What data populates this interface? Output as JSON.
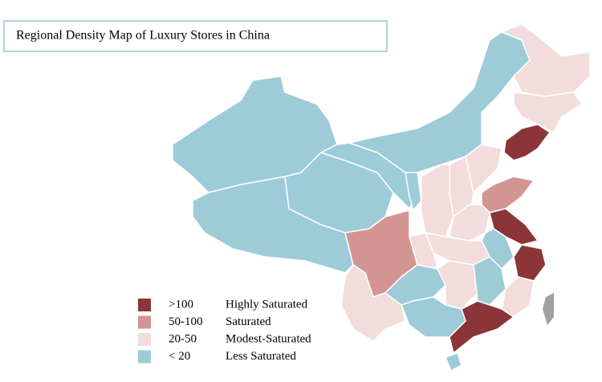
{
  "title": "Regional Density Map of Luxury Stores in China",
  "legend": [
    {
      "range": ">100",
      "label": "Highly Saturated",
      "color": "#8c3538"
    },
    {
      "range": "50-100",
      "label": "Saturated",
      "color": "#d39593"
    },
    {
      "range": "20-50",
      "label": "Modest-Saturated",
      "color": "#f2dcdc"
    },
    {
      "range": "< 20",
      "label": "Less Saturated",
      "color": "#9dcbd8"
    }
  ]
}
